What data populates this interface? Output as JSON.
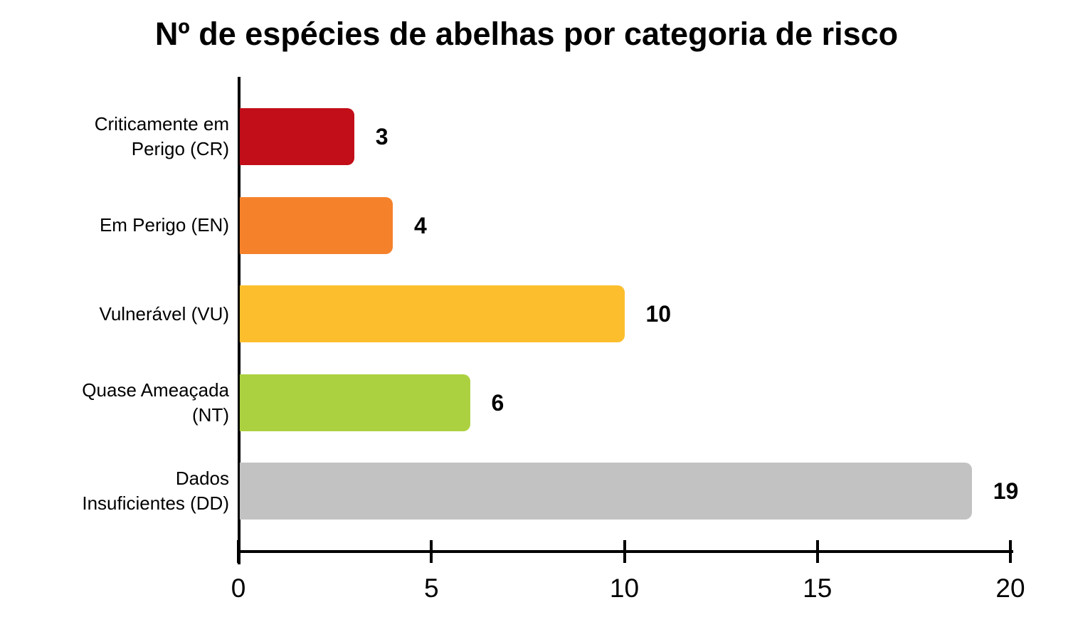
{
  "chart_data": {
    "type": "bar",
    "orientation": "horizontal",
    "title": "Nº de espécies de abelhas por categoria de risco",
    "categories": [
      "Criticamente em Perigo (CR)",
      "Em Perigo (EN)",
      "Vulnerável (VU)",
      "Quase Ameaçada (NT)",
      "Dados Insuficientes (DD)"
    ],
    "category_label_lines": [
      [
        "Criticamente em",
        "Perigo (CR)"
      ],
      [
        "Em Perigo (EN)"
      ],
      [
        "Vulnerável (VU)"
      ],
      [
        "Quase Ameaçada",
        "(NT)"
      ],
      [
        "Dados",
        "Insuficientes (DD)"
      ]
    ],
    "values": [
      3,
      4,
      10,
      6,
      19
    ],
    "value_labels": [
      "3",
      "4",
      "10",
      "6",
      "19"
    ],
    "bar_colors": [
      "#C10E19",
      "#F5822B",
      "#FCBE2D",
      "#ACD140",
      "#C2C2C2"
    ],
    "x_ticks": [
      "0",
      "5",
      "10",
      "15",
      "20"
    ],
    "x_tick_values": [
      0,
      5,
      10,
      15,
      20
    ],
    "xlim": [
      0,
      20
    ],
    "xlabel": "",
    "ylabel": "",
    "grid": false,
    "legend": false,
    "background_color": "#FFFFFF",
    "axis_color": "#000000",
    "text_color": "#000000"
  }
}
